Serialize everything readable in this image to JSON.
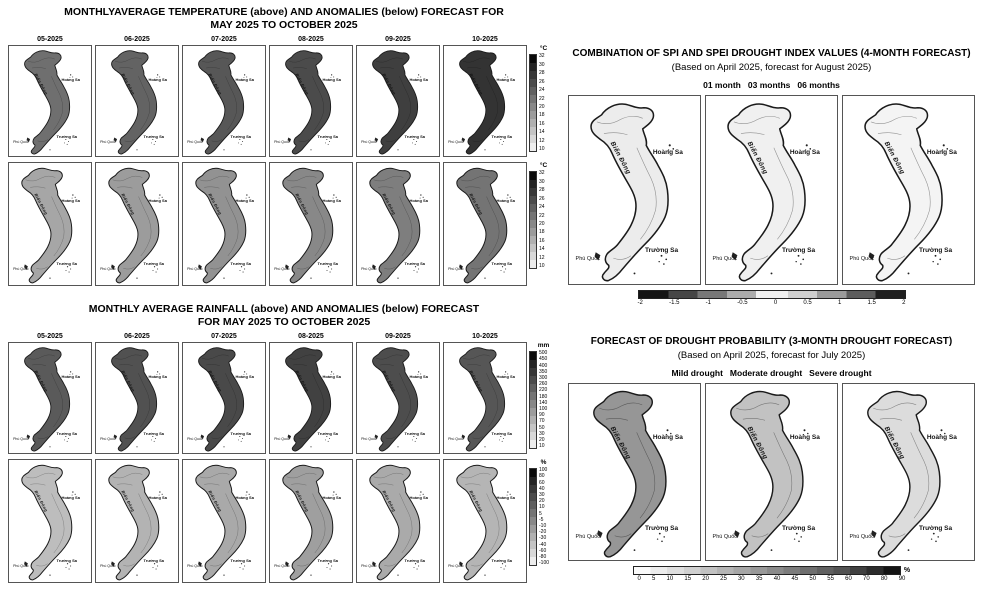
{
  "colors": {
    "map_outline": "#1a1a1a",
    "box_border": "#555555"
  },
  "map_labels": {
    "bien_dong": "Biển Đông",
    "hoang_sa": "Hoàng Sa",
    "truong_sa": "Trường Sa",
    "phu_quoc": "Phú Quốc"
  },
  "temperature_panel": {
    "title_line1": "MONTHLYAVERAGE TEMPERATURE (above) AND ANOMALIES (below) FORECAST FOR",
    "title_line2": "MAY 2025 TO OCTOBER 2025",
    "months": [
      "05-2025",
      "06-2025",
      "07-2025",
      "08-2025",
      "09-2025",
      "10-2025"
    ],
    "monthly_fills": [
      "#6f6f6f",
      "#636363",
      "#575757",
      "#4b4b4b",
      "#3f3f3f",
      "#333333"
    ],
    "anomaly_fills": [
      "#a6a6a6",
      "#9c9c9c",
      "#929292",
      "#888888",
      "#7e7e7e",
      "#747474"
    ],
    "scale_unit": "°C",
    "scale_ticks": [
      "32",
      "30",
      "28",
      "26",
      "24",
      "22",
      "20",
      "18",
      "16",
      "14",
      "12",
      "10"
    ],
    "anomaly_scale_unit": "°C",
    "anomaly_scale_ticks": [
      "32",
      "30",
      "28",
      "26",
      "24",
      "22",
      "20",
      "18",
      "16",
      "14",
      "12",
      "10"
    ]
  },
  "rainfall_panel": {
    "title_line1": "MONTHLY AVERAGE RAINFALL (above) AND ANOMALIES (below) FORECAST",
    "title_line2": "FOR MAY 2025 TO OCTOBER 2025",
    "months": [
      "05-2025",
      "06-2025",
      "07-2025",
      "08-2025",
      "09-2025",
      "10-2025"
    ],
    "monthly_fills": [
      "#5a5a5a",
      "#515151",
      "#494949",
      "#414141",
      "#4d4d4d",
      "#565656"
    ],
    "anomaly_fills": [
      "#bdbdbd",
      "#b3b3b3",
      "#a9a9a9",
      "#9f9f9f",
      "#aaaaaa",
      "#b5b5b5"
    ],
    "scale_unit": "mm",
    "scale_ticks": [
      "500",
      "450",
      "400",
      "350",
      "300",
      "260",
      "220",
      "180",
      "140",
      "100",
      "90",
      "70",
      "50",
      "30",
      "20",
      "10"
    ],
    "anomaly_scale_unit": "%",
    "anomaly_scale_ticks": [
      "100",
      "80",
      "60",
      "40",
      "30",
      "20",
      "10",
      "5",
      "-5",
      "-10",
      "-20",
      "-30",
      "-40",
      "-60",
      "-80",
      "-100"
    ]
  },
  "spi_panel": {
    "title": "COMBINATION OF SPI AND SPEI DROUGHT INDEX VALUES (4-MONTH FORECAST)",
    "subtitle": "(Based on April 2025, forecast for August 2025)",
    "legend": [
      "01 month",
      "03 months",
      "06 months"
    ],
    "map_fills": [
      "#ececec",
      "#f0f0f0",
      "#f4f4f4"
    ],
    "scale_ticks": [
      "-2",
      "-1.5",
      "-1",
      "-0.5",
      "0",
      "0.5",
      "1",
      "1.5",
      "2"
    ]
  },
  "drought_panel": {
    "title": "FORECAST OF DROUGHT PROBABILITY (3-MONTH DROUGHT FORECAST)",
    "subtitle": "(Based on April 2025, forecast for July 2025)",
    "legend": [
      "Mild drought",
      "Moderate drought",
      "Severe drought"
    ],
    "map_fills": [
      "#969696",
      "#c2c2c2",
      "#dcdcdc"
    ],
    "scale_unit": "%",
    "scale_ticks": [
      "0",
      "5",
      "10",
      "15",
      "20",
      "25",
      "30",
      "35",
      "40",
      "45",
      "50",
      "55",
      "60",
      "70",
      "80",
      "90"
    ]
  }
}
